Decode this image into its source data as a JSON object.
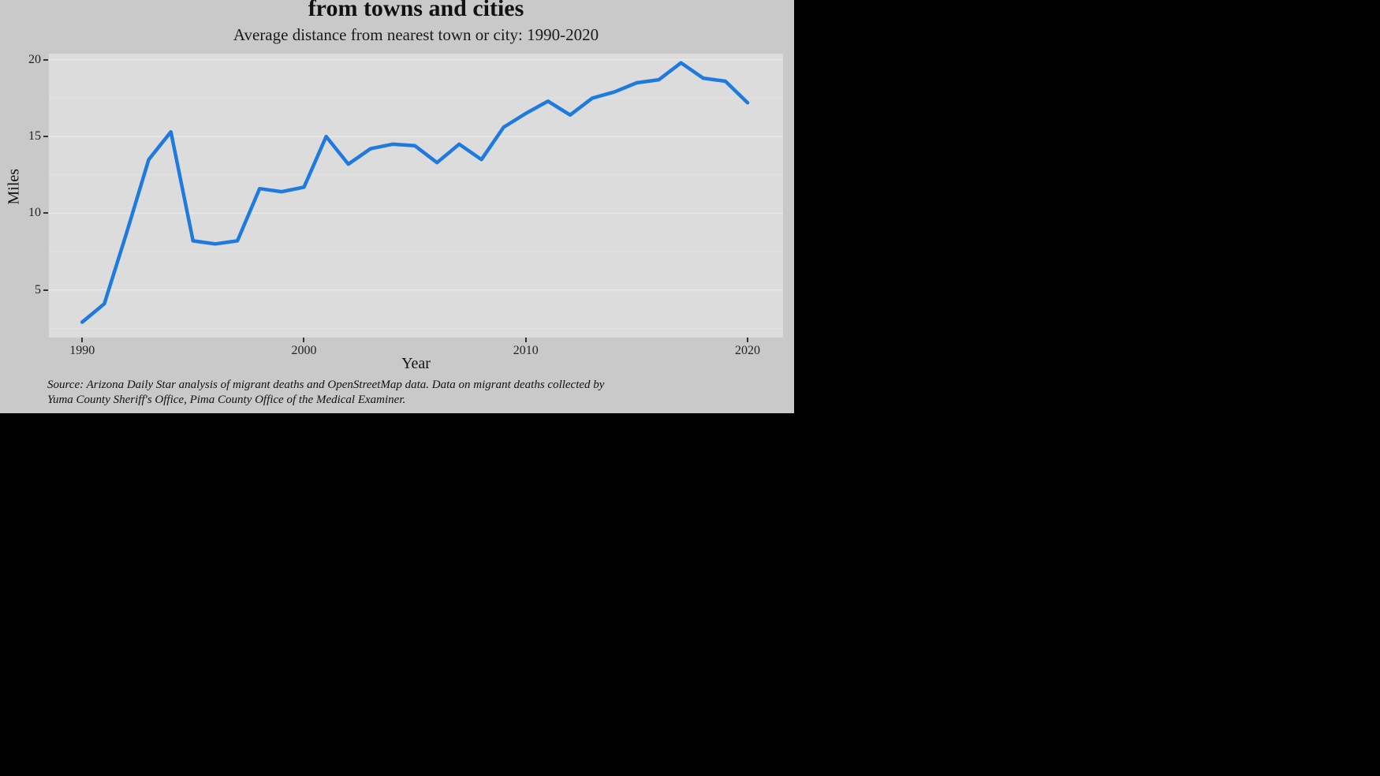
{
  "chart_data": {
    "type": "line",
    "title": "from towns and cities",
    "subtitle": "Average distance from nearest town or city: 1990-2020",
    "xlabel": "Year",
    "ylabel": "Miles",
    "x": [
      1990,
      1991,
      1992,
      1993,
      1994,
      1995,
      1996,
      1997,
      1998,
      1999,
      2000,
      2001,
      2002,
      2003,
      2004,
      2005,
      2006,
      2007,
      2008,
      2009,
      2010,
      2011,
      2012,
      2013,
      2014,
      2015,
      2016,
      2017,
      2018,
      2019,
      2020
    ],
    "values": [
      2.9,
      4.1,
      8.7,
      13.5,
      15.3,
      8.2,
      8.0,
      8.2,
      11.6,
      11.4,
      11.7,
      15.0,
      13.2,
      14.2,
      14.5,
      14.4,
      13.3,
      14.5,
      13.5,
      15.6,
      16.5,
      17.3,
      16.4,
      17.5,
      17.9,
      18.5,
      18.7,
      19.8,
      18.8,
      18.6,
      17.2
    ],
    "xlim": [
      1988.5,
      2021.6
    ],
    "ylim": [
      1.9,
      20.4
    ],
    "x_ticks": [
      1990,
      2000,
      2010,
      2020
    ],
    "y_ticks": [
      5,
      10,
      15,
      20
    ],
    "y_minor": [
      2.5,
      7.5,
      12.5,
      17.5
    ],
    "grid": "horizontal-only",
    "legend": "none"
  },
  "caption": {
    "line1": "Source: Arizona Daily Star analysis of migrant deaths and OpenStreetMap data. Data on migrant deaths collected by",
    "line2": "Yuma County Sheriff's Office, Pima County Office of the Medical Examiner."
  },
  "colors": {
    "line": "#1f7ae0",
    "chart_background": "#c9c9c9",
    "panel_background": "#dcdcdc",
    "grid_major": "#e9e9e9",
    "grid_minor": "#e2e2e2",
    "tick": "#333333",
    "canvas_background": "#000000"
  }
}
